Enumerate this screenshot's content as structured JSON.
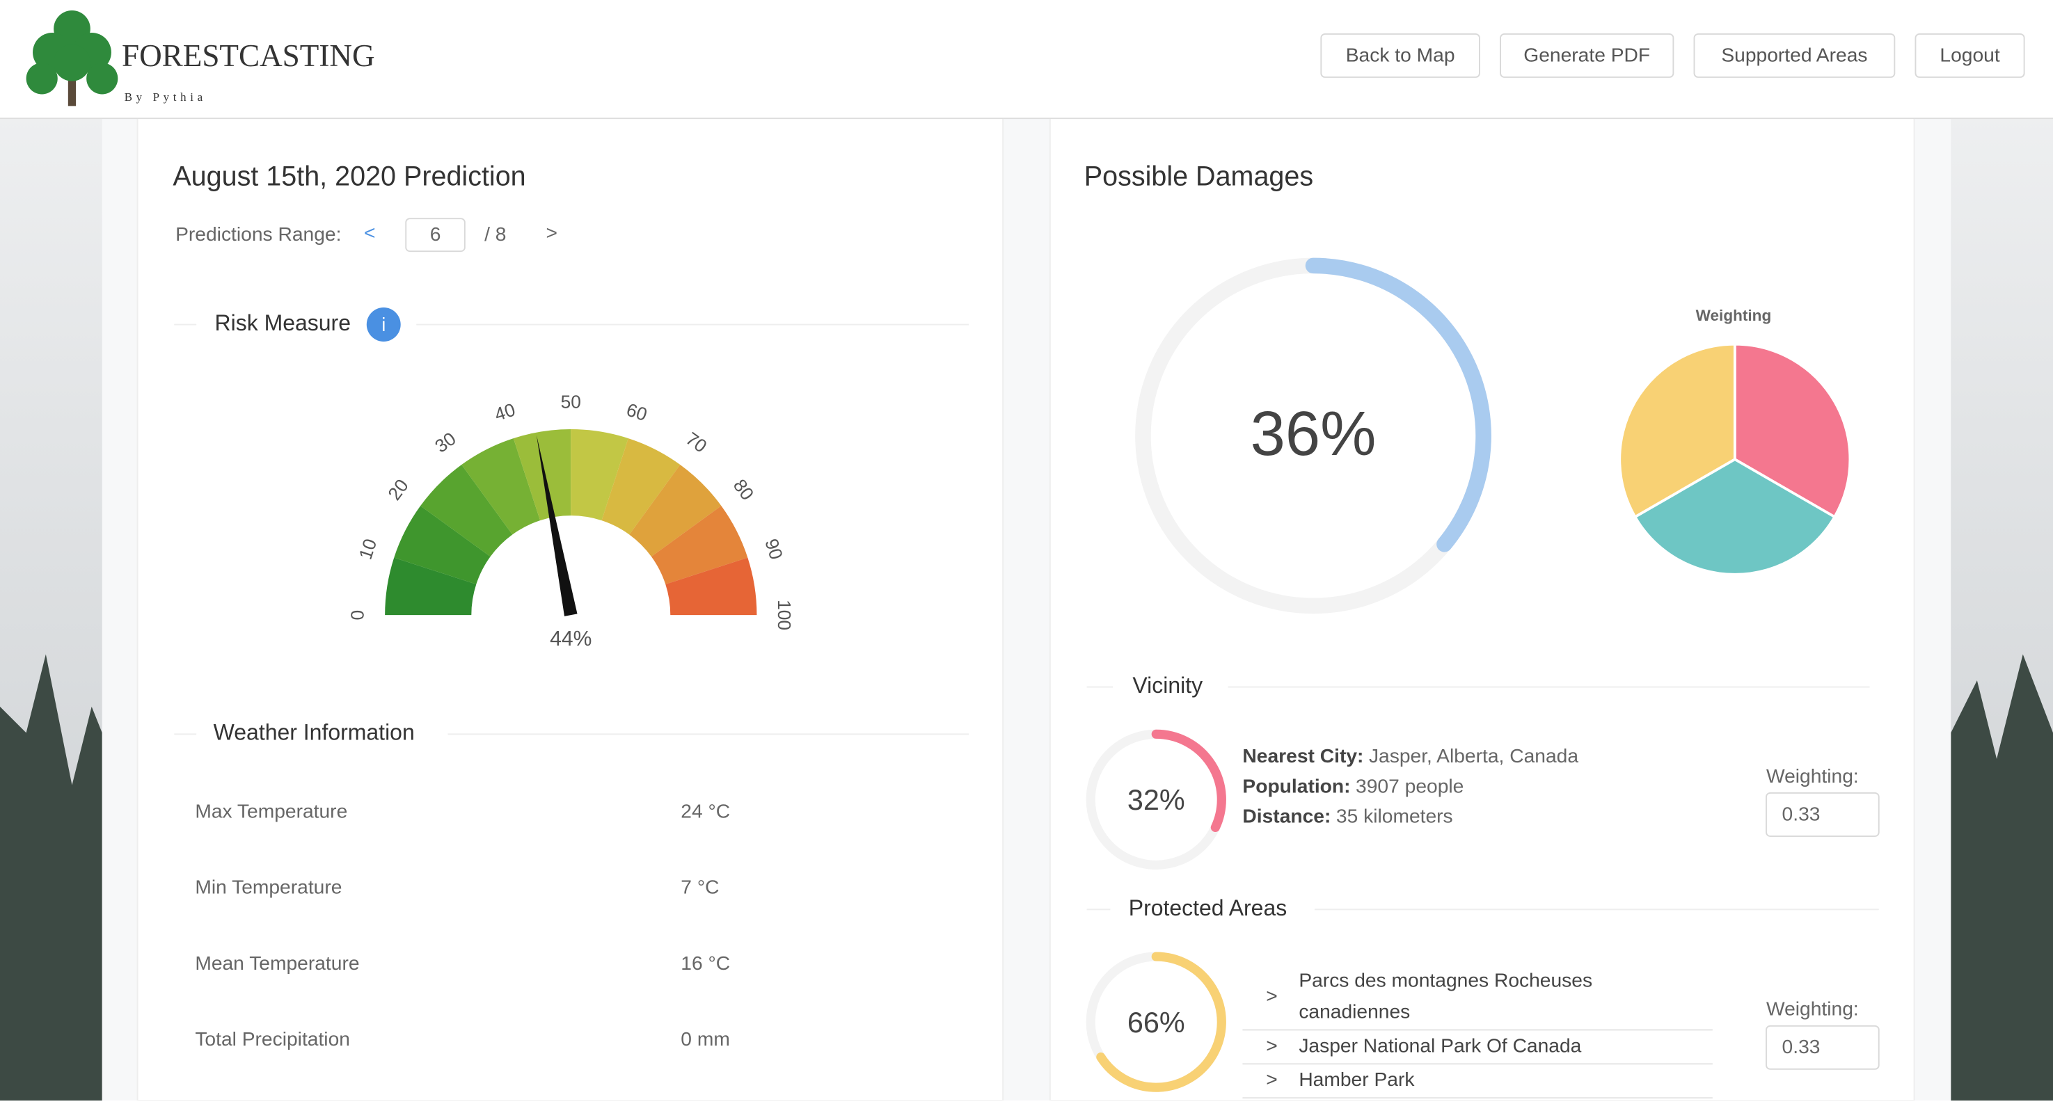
{
  "header": {
    "brand": "FORESTCASTING",
    "tagline": "By Pythia",
    "buttons": [
      "Back to Map",
      "Generate PDF",
      "Supported Areas",
      "Logout"
    ]
  },
  "prediction": {
    "title": "August 15th, 2020 Prediction",
    "range_label": "Predictions Range:",
    "prev": "<",
    "current": "6",
    "total": "/ 8",
    "next": ">"
  },
  "risk": {
    "title": "Risk Measure",
    "info": "i",
    "gauge": {
      "ticks": [
        0,
        10,
        20,
        30,
        40,
        50,
        60,
        70,
        80,
        90,
        100
      ],
      "value": 44,
      "value_label": "44%"
    }
  },
  "weather": {
    "title": "Weather Information",
    "rows": [
      [
        "Max Temperature",
        "24 °C"
      ],
      [
        "Min Temperature",
        "7 °C"
      ],
      [
        "Mean Temperature",
        "16 °C"
      ],
      [
        "Total Precipitation",
        "0 mm"
      ]
    ]
  },
  "damages": {
    "title": "Possible Damages",
    "total": {
      "value": 36,
      "label": "36%"
    },
    "weighting_chart": {
      "title": "Weighting",
      "values": [
        0.33,
        0.33,
        0.33
      ],
      "colors": [
        "#f4778f",
        "#6ec6c4",
        "#f8d174"
      ]
    }
  },
  "vicinity": {
    "title": "Vicinity",
    "score": {
      "value": 32,
      "label": "32%"
    },
    "color": "#f4778f",
    "details": [
      [
        "Nearest City:",
        "Jasper, Alberta, Canada"
      ],
      [
        "Population:",
        "3907 people"
      ],
      [
        "Distance:",
        "35 kilometers"
      ]
    ],
    "weighting_label": "Weighting:",
    "weighting": "0.33"
  },
  "protected": {
    "title": "Protected Areas",
    "score": {
      "value": 66,
      "label": "66%"
    },
    "color": "#f8d174",
    "items": [
      [
        "Parcs des montagnes Rocheuses",
        "canadiennes"
      ],
      [
        "Jasper National Park Of Canada"
      ],
      [
        "Hamber Park"
      ]
    ],
    "arrow": ">",
    "weighting_label": "Weighting:",
    "weighting": "0.33"
  }
}
